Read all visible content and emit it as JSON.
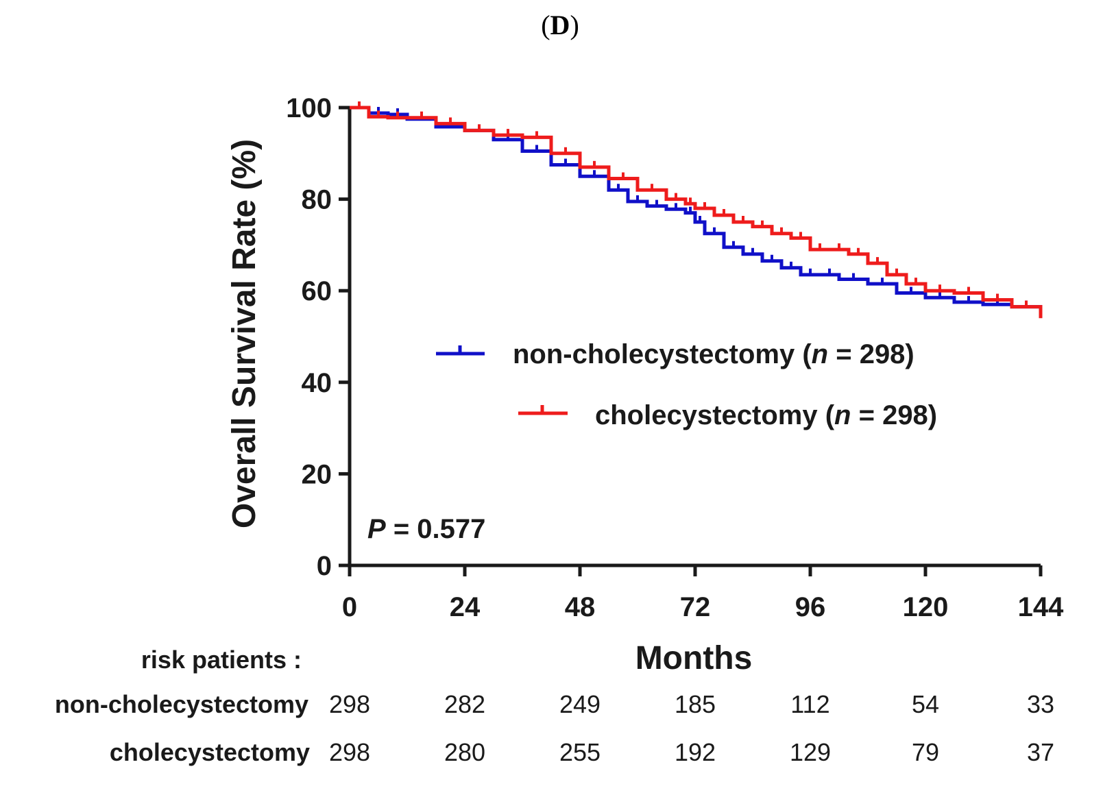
{
  "panel_label": {
    "open": "(",
    "letter": "D",
    "close": ")"
  },
  "chart_data": {
    "type": "line",
    "subtype": "kaplan-meier",
    "title": "(D)",
    "xlabel": "Months",
    "ylabel": "Overall Survival Rate (%)",
    "xlim": [
      0,
      144
    ],
    "ylim": [
      0,
      100
    ],
    "xticks": [
      0,
      24,
      48,
      72,
      96,
      120,
      144
    ],
    "yticks": [
      0,
      20,
      40,
      60,
      80,
      100
    ],
    "grid": false,
    "legend_position": "center-right",
    "colors": {
      "non": "#1010c8",
      "chole": "#ee1c1c",
      "axis": "#1a1a1a"
    },
    "series": [
      {
        "key": "non",
        "name": "non-cholecystectomy",
        "n_label": "n",
        "n_value": "= 298)",
        "name_prefix": "non-cholecystectomy (",
        "x": [
          0,
          4,
          8,
          12,
          18,
          24,
          30,
          36,
          42,
          48,
          54,
          58,
          62,
          66,
          70,
          72,
          74,
          78,
          82,
          86,
          90,
          94,
          98,
          102,
          108,
          114,
          120,
          126,
          132,
          138,
          144
        ],
        "y": [
          100,
          98.8,
          98.5,
          97.5,
          95.8,
          95.0,
          93.0,
          90.5,
          87.5,
          85.0,
          82.0,
          79.5,
          78.5,
          77.8,
          77.0,
          75.0,
          72.5,
          69.5,
          68.0,
          66.5,
          65.0,
          63.5,
          63.5,
          62.5,
          61.5,
          59.5,
          58.5,
          57.5,
          57.0,
          56.5,
          56.0
        ]
      },
      {
        "key": "chole",
        "name": "cholecystectomy",
        "n_label": "n",
        "n_value": "= 298)",
        "name_prefix": "cholecystectomy (",
        "x": [
          0,
          4,
          8,
          12,
          18,
          24,
          30,
          36,
          42,
          48,
          54,
          60,
          66,
          70,
          72,
          76,
          80,
          84,
          88,
          92,
          96,
          100,
          104,
          108,
          112,
          116,
          120,
          126,
          132,
          138,
          144
        ],
        "y": [
          100,
          98.0,
          97.8,
          97.8,
          96.5,
          95.0,
          94.0,
          93.5,
          90.0,
          87.0,
          84.5,
          82.0,
          80.0,
          79.0,
          78.0,
          76.5,
          75.0,
          74.0,
          72.5,
          71.5,
          69.0,
          69.0,
          68.0,
          66.0,
          63.5,
          61.5,
          60.0,
          59.5,
          58.0,
          56.5,
          54.0
        ]
      }
    ],
    "annotation": {
      "p_label": "P",
      "p_value": "= 0.577"
    },
    "risk_table": {
      "header": "risk patients :",
      "rows": [
        {
          "label": "non-cholecystectomy",
          "values": [
            "298",
            "282",
            "249",
            "185",
            "112",
            "54",
            "33"
          ]
        },
        {
          "label": "cholecystectomy",
          "values": [
            "298",
            "280",
            "255",
            "192",
            "129",
            "79",
            "37"
          ]
        }
      ]
    }
  }
}
